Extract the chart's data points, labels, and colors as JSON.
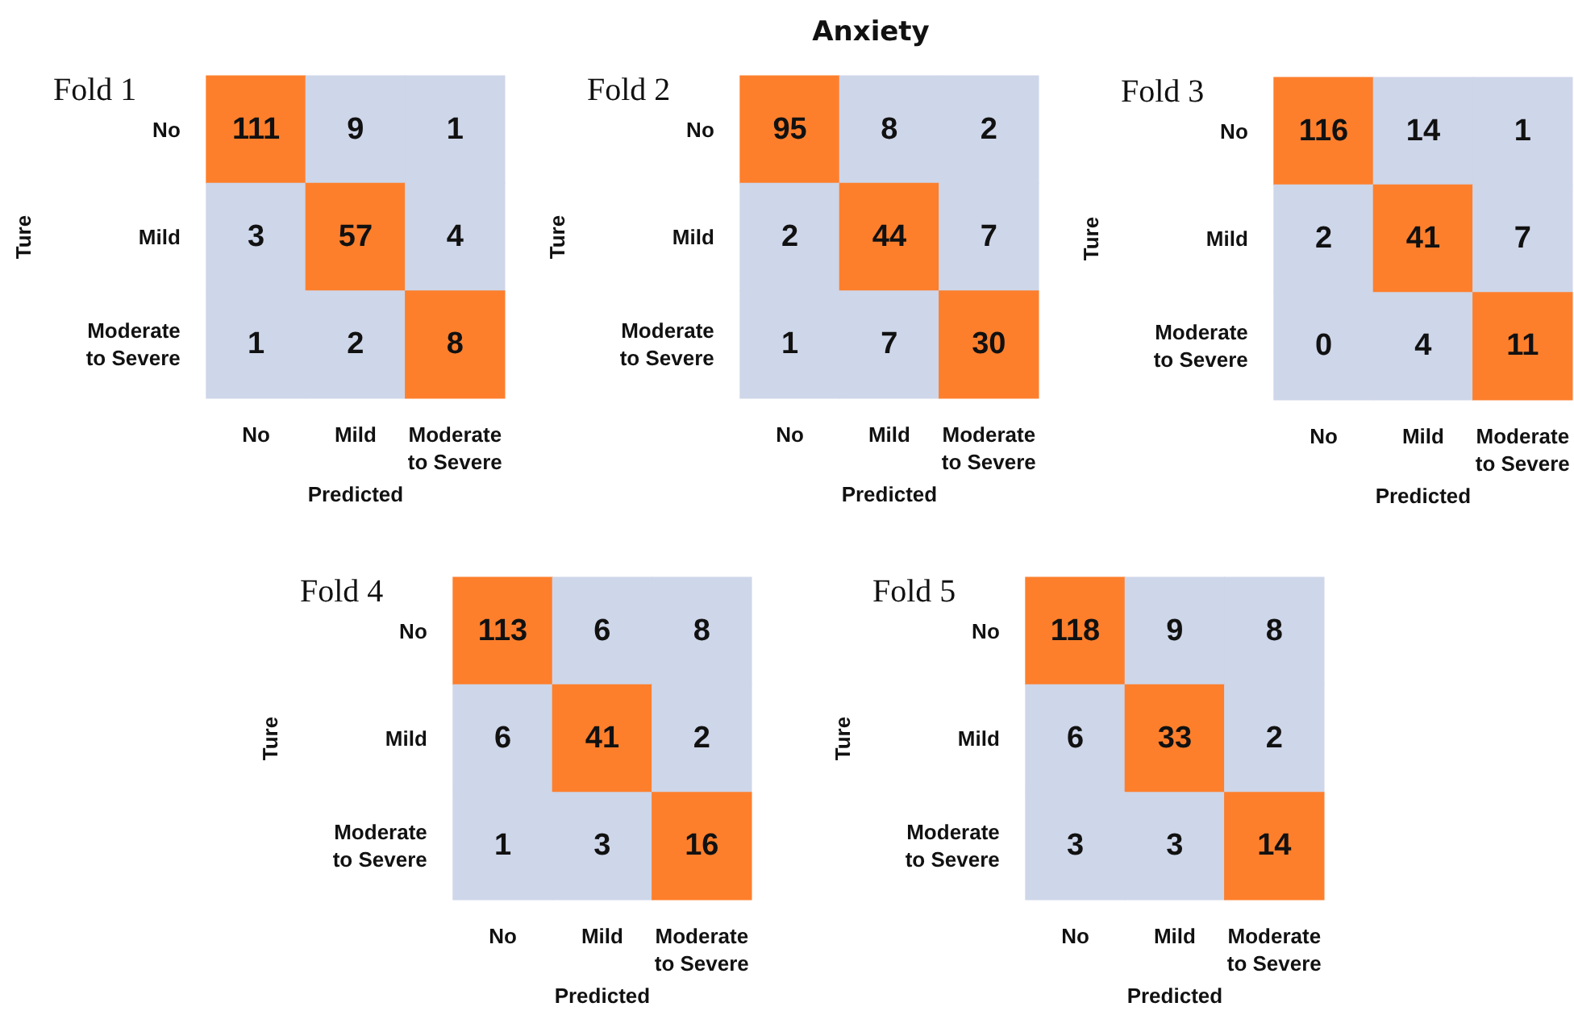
{
  "chart_data": [
    {
      "type": "heatmap",
      "title": "Fold 1",
      "annotations": [
        "Anxiety"
      ],
      "xlabel": "Predicted",
      "ylabel": "Ture",
      "categories": [
        "No",
        "Mild",
        "Moderate\nto Severe"
      ],
      "y_categories": [
        "No",
        "Mild",
        "Moderate\nto Severe"
      ],
      "cells": [
        [
          111,
          9,
          1
        ],
        [
          3,
          57,
          4
        ],
        [
          1,
          2,
          8
        ]
      ],
      "colors": [
        "#ced6e9",
        "#fd7f2c"
      ],
      "data_labels": true
    },
    {
      "type": "heatmap",
      "title": "Fold 2",
      "xlabel": "Predicted",
      "ylabel": "Ture",
      "categories": [
        "No",
        "Mild",
        "Moderate\nto Severe"
      ],
      "y_categories": [
        "No",
        "Mild",
        "Moderate\nto Severe"
      ],
      "cells": [
        [
          95,
          8,
          2
        ],
        [
          2,
          44,
          7
        ],
        [
          1,
          7,
          30
        ]
      ],
      "colors": [
        "#ced6e9",
        "#fd7f2c"
      ],
      "data_labels": true
    },
    {
      "type": "heatmap",
      "title": "Fold 3",
      "xlabel": "Predicted",
      "ylabel": "Ture",
      "categories": [
        "No",
        "Mild",
        "Moderate\nto Severe"
      ],
      "y_categories": [
        "No",
        "Mild",
        "Moderate\nto Severe"
      ],
      "cells": [
        [
          116,
          14,
          1
        ],
        [
          2,
          41,
          7
        ],
        [
          0,
          4,
          11
        ]
      ],
      "colors": [
        "#ced6e9",
        "#fd7f2c"
      ],
      "data_labels": true
    },
    {
      "type": "heatmap",
      "title": "Fold 4",
      "xlabel": "Predicted",
      "ylabel": "Ture",
      "categories": [
        "No",
        "Mild",
        "Moderate\nto Severe"
      ],
      "y_categories": [
        "No",
        "Mild",
        "Moderate\nto Severe"
      ],
      "cells": [
        [
          113,
          6,
          8
        ],
        [
          6,
          41,
          2
        ],
        [
          1,
          3,
          16
        ]
      ],
      "colors": [
        "#ced6e9",
        "#fd7f2c"
      ],
      "data_labels": true
    },
    {
      "type": "heatmap",
      "title": "Fold 5",
      "xlabel": "Predicted",
      "ylabel": "Ture",
      "categories": [
        "No",
        "Mild",
        "Moderate\nto Severe"
      ],
      "y_categories": [
        "No",
        "Mild",
        "Moderate\nto Severe"
      ],
      "cells": [
        [
          118,
          9,
          8
        ],
        [
          6,
          33,
          2
        ],
        [
          3,
          3,
          14
        ]
      ],
      "colors": [
        "#ced6e9",
        "#fd7f2c"
      ],
      "data_labels": true
    }
  ]
}
